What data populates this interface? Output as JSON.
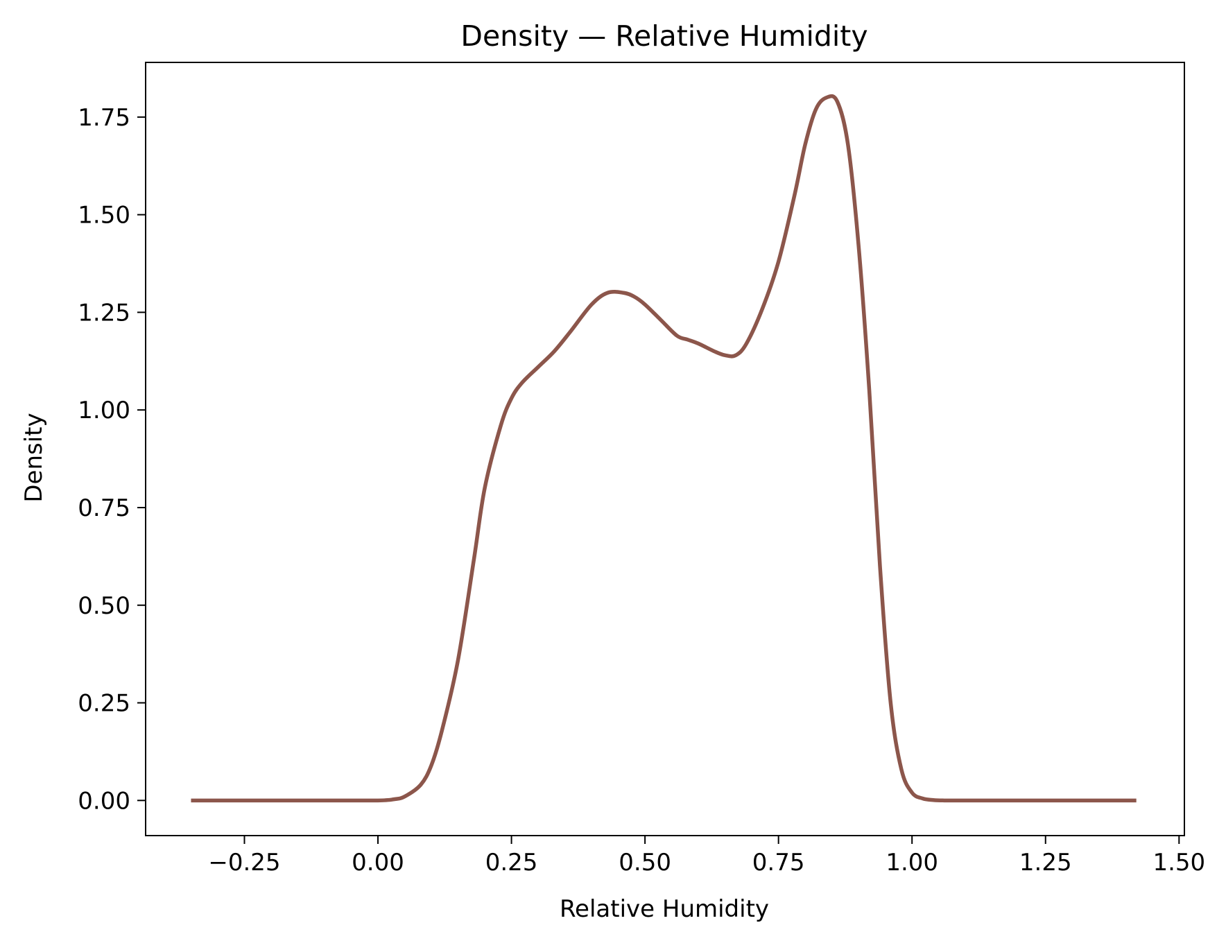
{
  "chart_data": {
    "type": "line",
    "title": "Density — Relative Humidity",
    "xlabel": "Relative Humidity",
    "ylabel": "Density",
    "xlim": [
      -0.435,
      1.51
    ],
    "ylim": [
      -0.09,
      1.89
    ],
    "xticks": [
      -0.25,
      0.0,
      0.25,
      0.5,
      0.75,
      1.0,
      1.25,
      1.5
    ],
    "xtick_labels": [
      "−0.25",
      "0.00",
      "0.25",
      "0.50",
      "0.75",
      "1.00",
      "1.25",
      "1.50"
    ],
    "yticks": [
      0.0,
      0.25,
      0.5,
      0.75,
      1.0,
      1.25,
      1.5,
      1.75
    ],
    "ytick_labels": [
      "0.00",
      "0.25",
      "0.50",
      "0.75",
      "1.00",
      "1.25",
      "1.50",
      "1.75"
    ],
    "grid": false,
    "series": [
      {
        "color": "#8c564b",
        "x": [
          -0.35,
          -0.2,
          -0.1,
          0.0,
          0.03,
          0.05,
          0.08,
          0.1,
          0.12,
          0.15,
          0.18,
          0.2,
          0.23,
          0.25,
          0.27,
          0.3,
          0.33,
          0.36,
          0.4,
          0.43,
          0.46,
          0.48,
          0.5,
          0.53,
          0.56,
          0.58,
          0.6,
          0.63,
          0.65,
          0.67,
          0.69,
          0.72,
          0.75,
          0.78,
          0.8,
          0.82,
          0.84,
          0.86,
          0.88,
          0.9,
          0.92,
          0.94,
          0.96,
          0.98,
          1.0,
          1.02,
          1.04,
          1.06,
          1.1,
          1.2,
          1.3,
          1.42
        ],
        "y": [
          0.0,
          0.0,
          0.0,
          0.0,
          0.003,
          0.01,
          0.04,
          0.09,
          0.18,
          0.36,
          0.62,
          0.8,
          0.96,
          1.03,
          1.07,
          1.11,
          1.15,
          1.2,
          1.27,
          1.3,
          1.3,
          1.29,
          1.27,
          1.23,
          1.19,
          1.18,
          1.17,
          1.15,
          1.14,
          1.14,
          1.17,
          1.26,
          1.38,
          1.55,
          1.68,
          1.77,
          1.8,
          1.79,
          1.68,
          1.42,
          1.05,
          0.6,
          0.25,
          0.08,
          0.02,
          0.005,
          0.001,
          0.0,
          0.0,
          0.0,
          0.0,
          0.0
        ]
      }
    ]
  }
}
